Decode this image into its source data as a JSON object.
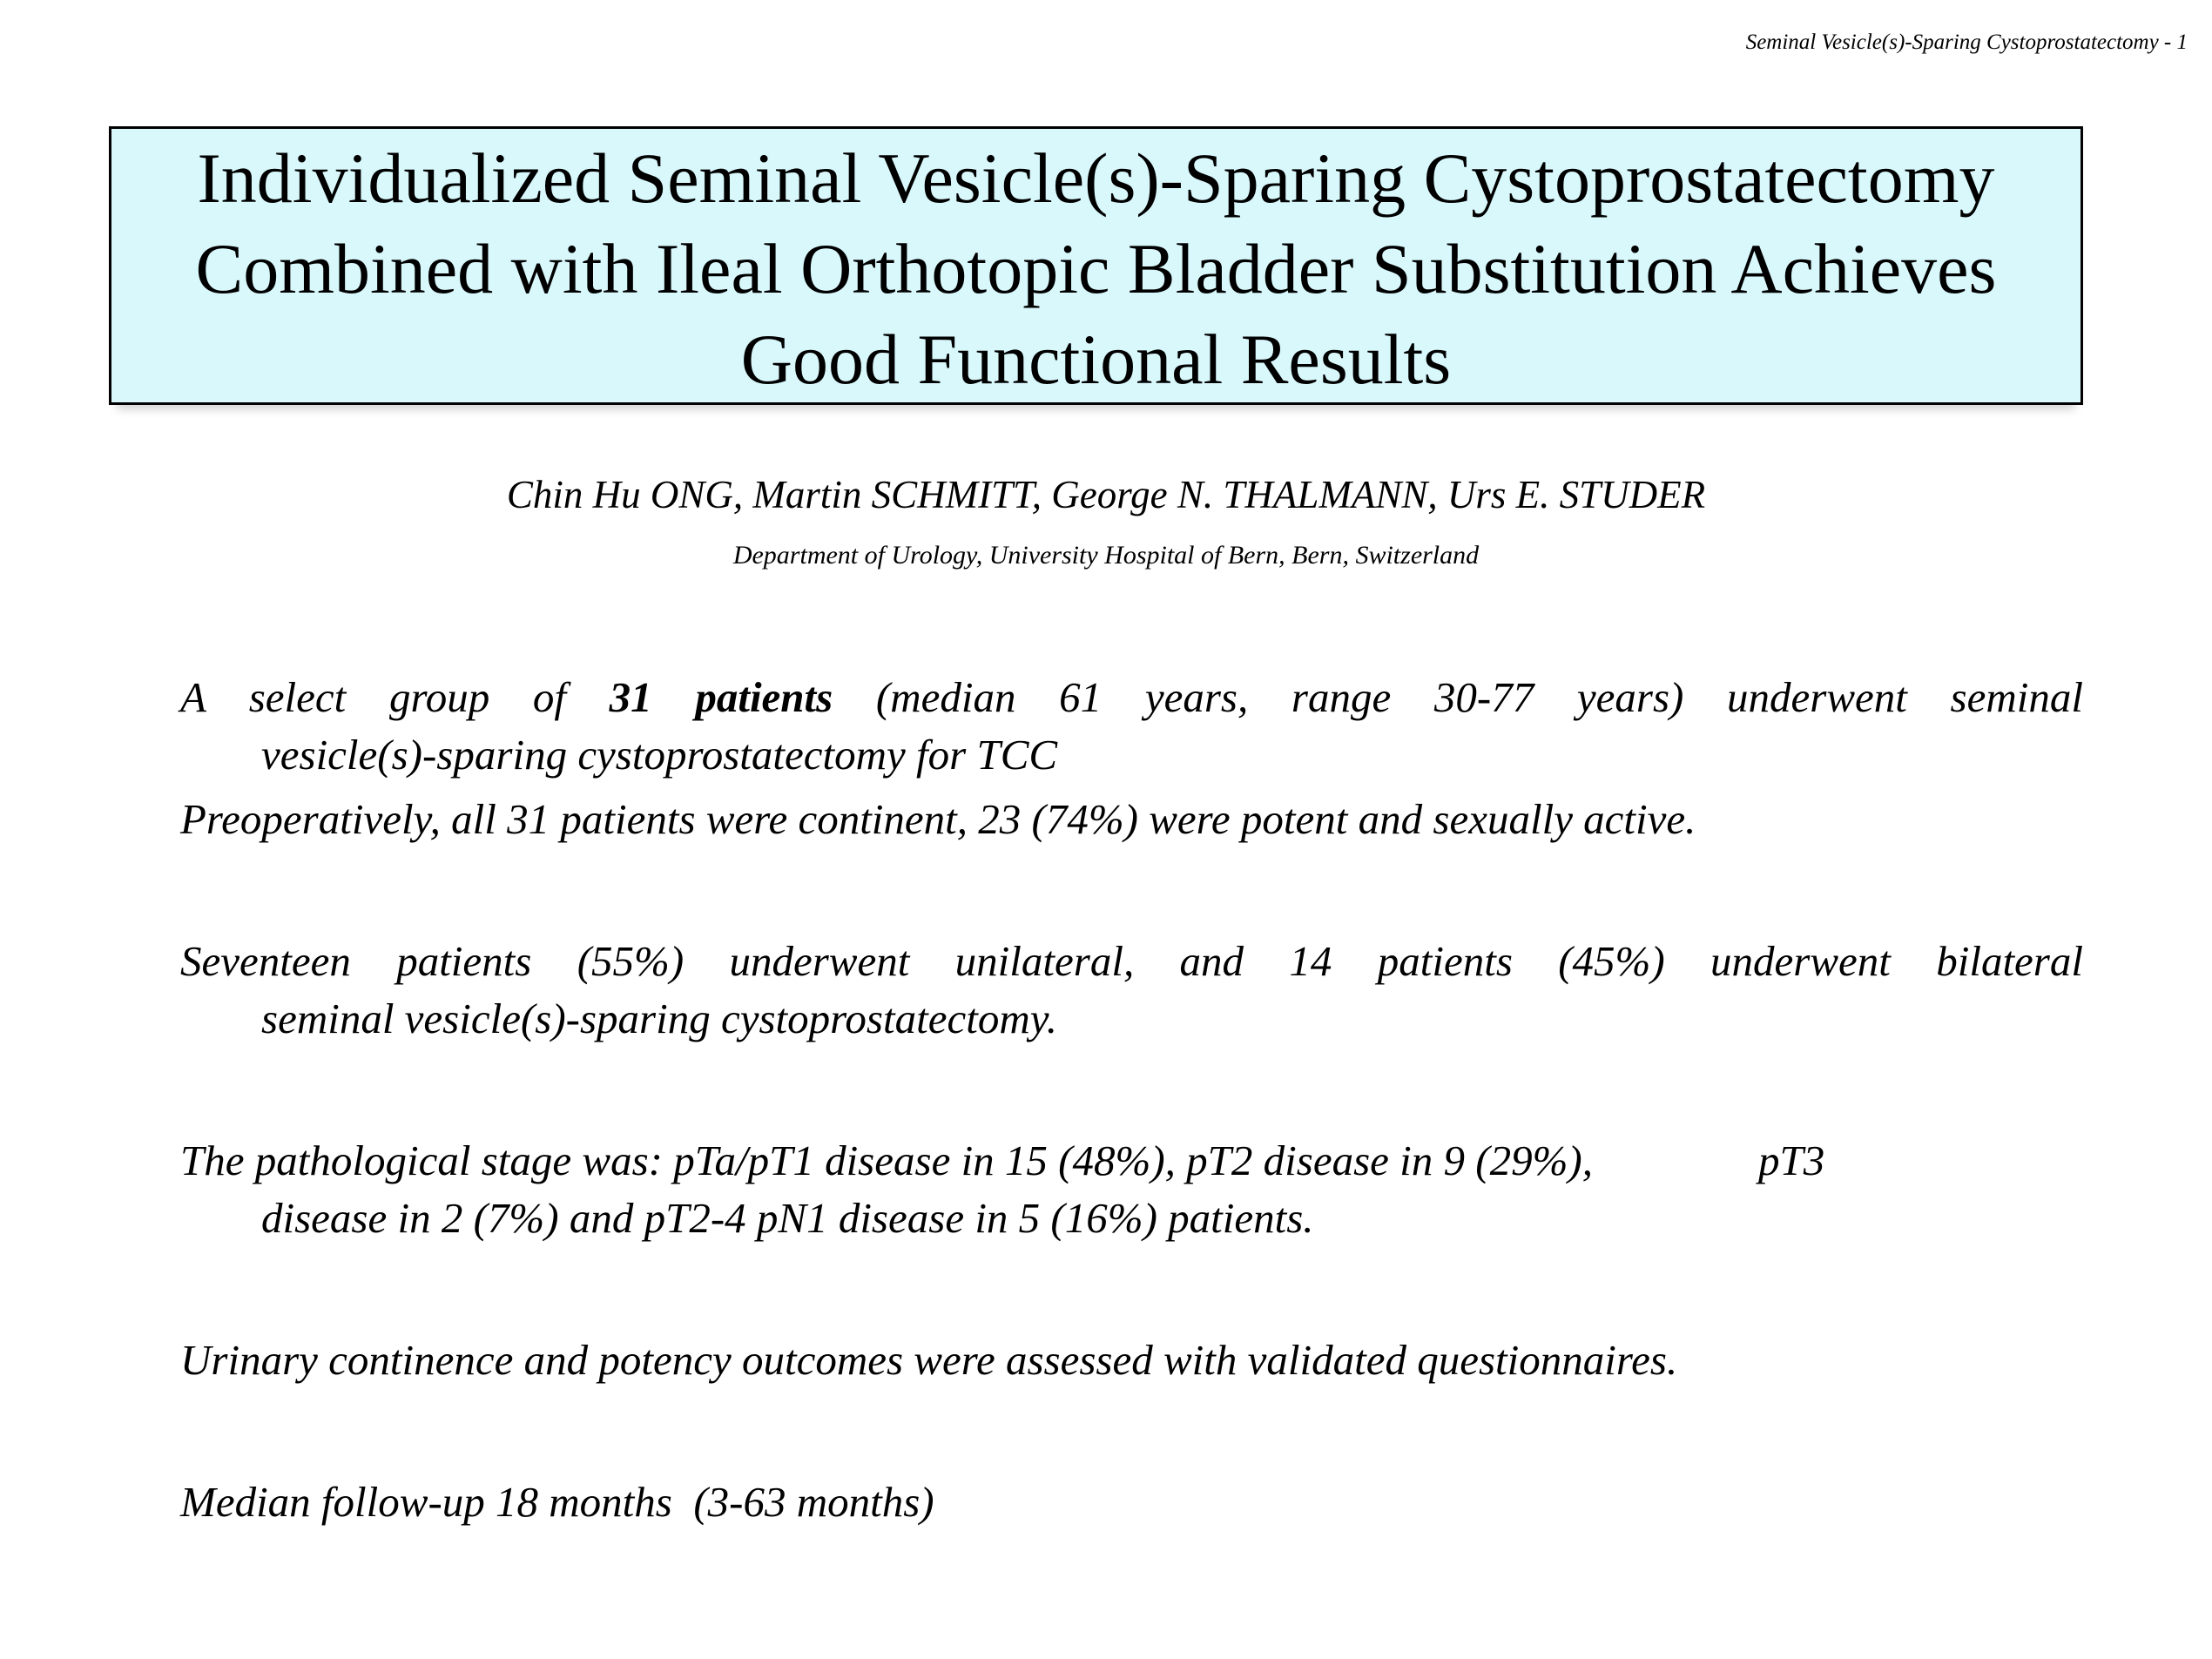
{
  "page": {
    "header_note": "Seminal Vesicle(s)-Sparing Cystoprostatectomy - 1",
    "title_lines": [
      "Individualized Seminal Vesicle(s)-Sparing Cystoprostatectomy",
      "Combined with Ileal Orthotopic Bladder Substitution Achieves",
      "Good Functional Results"
    ],
    "authors": "Chin Hu ONG, Martin SCHMITT, George N. THALMANN, Urs E. STUDER",
    "affiliation": "Department of Urology, University Hospital of Bern, Bern, Switzerland",
    "colors": {
      "background": "#ffffff",
      "text": "#000000",
      "title_box_fill": "#d9f8fc",
      "title_box_border": "#000000"
    }
  },
  "body": {
    "paragraphs": [
      {
        "spacing": "first",
        "lines": [
          {
            "stretch": true,
            "segments": [
              {
                "text": "A select group of "
              },
              {
                "text": "31 patients",
                "bold": true
              },
              {
                "text": " (median 61 years, range 30-77 years) underwent seminal"
              }
            ]
          },
          {
            "indent": true,
            "segments": [
              {
                "text": "vesicle(s)-sparing cystoprostatectomy for TCC"
              }
            ]
          }
        ]
      },
      {
        "spacing": "tight",
        "lines": [
          {
            "segments": [
              {
                "text": "Preoperatively, all 31 patients were continent, 23 (74%) were potent and sexually active."
              }
            ]
          }
        ]
      },
      {
        "lines": [
          {
            "stretch": true,
            "segments": [
              {
                "text": "Seventeen patients (55%) underwent unilateral, and 14 patients (45%) underwent bilateral"
              }
            ]
          },
          {
            "indent": true,
            "segments": [
              {
                "text": "seminal vesicle(s)-sparing cystoprostatectomy."
              }
            ]
          }
        ]
      },
      {
        "lines": [
          {
            "segments": [
              {
                "text": "The pathological stage was: pTa/pT1 disease in 15 (48%), pT2 disease in 9 (29%),"
              },
              {
                "gap": true
              },
              {
                "text": "pT3"
              }
            ]
          },
          {
            "indent": true,
            "segments": [
              {
                "text": "disease in 2 (7%) and pT2-4 pN1 disease in 5 (16%) patients."
              }
            ]
          }
        ]
      },
      {
        "lines": [
          {
            "segments": [
              {
                "text": "Urinary continence and potency outcomes were assessed with validated questionnaires."
              }
            ]
          }
        ]
      },
      {
        "lines": [
          {
            "segments": [
              {
                "text": "Median follow-up 18 months  (3-63 months)"
              }
            ]
          }
        ]
      }
    ]
  }
}
